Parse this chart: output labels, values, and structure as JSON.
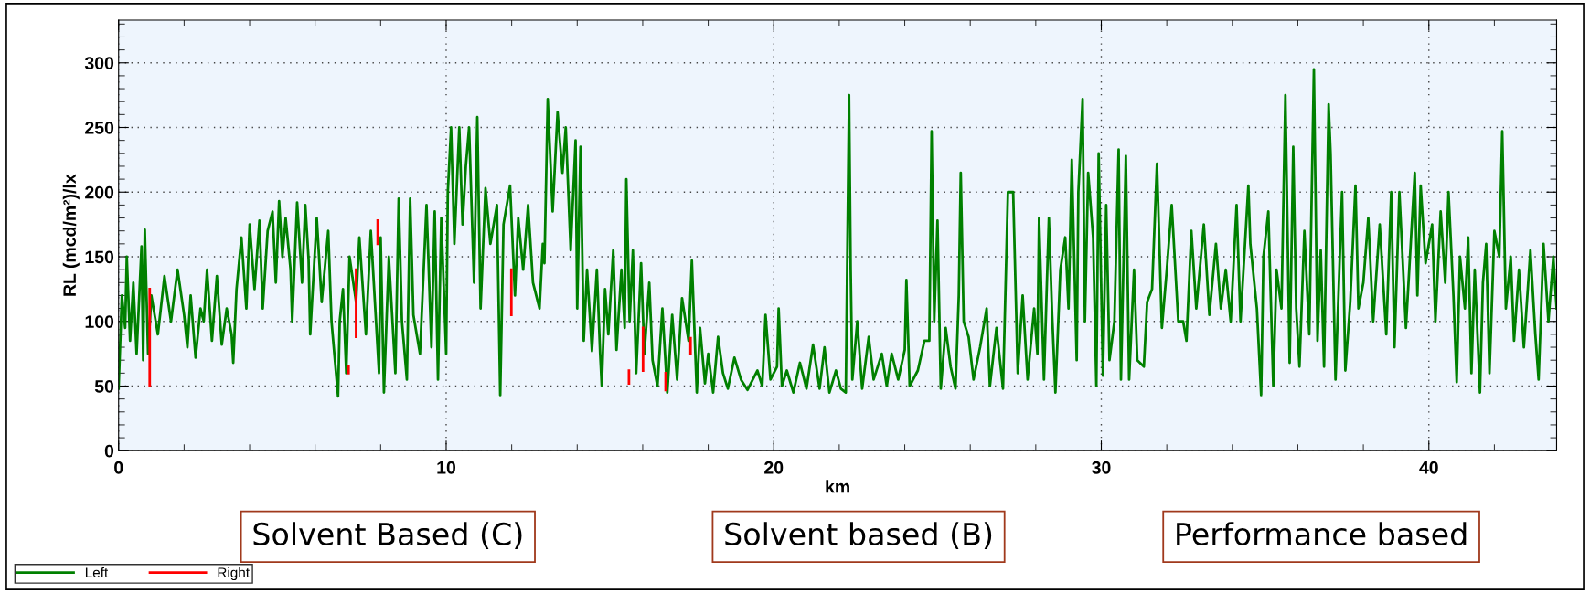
{
  "chart_data": {
    "type": "line",
    "xlabel": "km",
    "ylabel": "RL (mcd/m²)/lx",
    "xlim": [
      0,
      43.9
    ],
    "ylim": [
      0,
      333
    ],
    "xticks": [
      0,
      {
        "value": 2,
        "label": null
      },
      {
        "value": 4,
        "label": null
      },
      {
        "value": 6,
        "label": null
      },
      {
        "value": 8,
        "label": null
      },
      10,
      {
        "value": 12,
        "label": null
      },
      {
        "value": 14,
        "label": null
      },
      {
        "value": 16,
        "label": null
      },
      {
        "value": 18,
        "label": null
      },
      20,
      {
        "value": 22,
        "label": null
      },
      {
        "value": 24,
        "label": null
      },
      {
        "value": 26,
        "label": null
      },
      {
        "value": 28,
        "label": null
      },
      30,
      {
        "value": 32,
        "label": null
      },
      {
        "value": 34,
        "label": null
      },
      {
        "value": 36,
        "label": null
      },
      {
        "value": 38,
        "label": null
      },
      40,
      {
        "value": 42,
        "label": null
      }
    ],
    "yticks": [
      0,
      {
        "value": 10,
        "label": null
      },
      {
        "value": 20,
        "label": null
      },
      {
        "value": 30,
        "label": null
      },
      {
        "value": 40,
        "label": null
      },
      50,
      {
        "value": 60,
        "label": null
      },
      {
        "value": 70,
        "label": null
      },
      {
        "value": 80,
        "label": null
      },
      {
        "value": 90,
        "label": null
      },
      100,
      {
        "value": 110,
        "label": null
      },
      {
        "value": 120,
        "label": null
      },
      {
        "value": 130,
        "label": null
      },
      {
        "value": 140,
        "label": null
      },
      150,
      {
        "value": 160,
        "label": null
      },
      {
        "value": 170,
        "label": null
      },
      {
        "value": 180,
        "label": null
      },
      {
        "value": 190,
        "label": null
      },
      200,
      {
        "value": 210,
        "label": null
      },
      {
        "value": 220,
        "label": null
      },
      {
        "value": 230,
        "label": null
      },
      {
        "value": 240,
        "label": null
      },
      250,
      {
        "value": 260,
        "label": null
      },
      {
        "value": 270,
        "label": null
      },
      {
        "value": 280,
        "label": null
      },
      {
        "value": 290,
        "label": null
      },
      300,
      {
        "value": 310,
        "label": null
      },
      {
        "value": 320,
        "label": null
      },
      {
        "value": 330,
        "label": null
      }
    ],
    "grid": true,
    "legend": "bottom left",
    "line_style": "solid",
    "marker": "none",
    "annotations": [
      "Solvent Based (C)",
      "Solvent based (B)",
      "Performance based"
    ],
    "series": [
      {
        "name": "Left",
        "color": "#008000",
        "x": [
          0.0,
          0.1,
          0.2,
          0.25,
          0.35,
          0.45,
          0.55,
          0.7,
          0.75,
          0.8,
          0.9,
          1.0,
          1.2,
          1.4,
          1.6,
          1.8,
          2.0,
          2.1,
          2.2,
          2.35,
          2.5,
          2.6,
          2.7,
          2.85,
          3.0,
          3.15,
          3.3,
          3.45,
          3.5,
          3.6,
          3.75,
          3.9,
          4.0,
          4.15,
          4.3,
          4.4,
          4.55,
          4.7,
          4.8,
          4.9,
          5.0,
          5.1,
          5.25,
          5.3,
          5.45,
          5.6,
          5.7,
          5.8,
          5.85,
          6.05,
          6.2,
          6.4,
          6.5,
          6.7,
          6.75,
          6.85,
          6.95,
          7.05,
          7.25,
          7.35,
          7.55,
          7.7,
          7.95,
          8.0,
          8.1,
          8.25,
          8.45,
          8.55,
          8.65,
          8.8,
          8.9,
          9.0,
          9.2,
          9.4,
          9.55,
          9.65,
          9.75,
          9.85,
          10.0,
          10.05,
          10.15,
          10.25,
          10.4,
          10.5,
          10.6,
          10.7,
          10.85,
          10.95,
          11.05,
          11.2,
          11.35,
          11.55,
          11.65,
          11.75,
          11.95,
          12.1,
          12.2,
          12.35,
          12.5,
          12.65,
          12.85,
          12.95,
          13.0,
          13.1,
          13.25,
          13.4,
          13.55,
          13.65,
          13.8,
          13.95,
          14.0,
          14.1,
          14.2,
          14.3,
          14.45,
          14.6,
          14.7,
          14.75,
          14.85,
          14.95,
          15.1,
          15.2,
          15.35,
          15.45,
          15.5,
          15.6,
          15.7,
          15.8,
          15.95,
          16.05,
          16.2,
          16.3,
          16.45,
          16.6,
          16.75,
          16.9,
          17.05,
          17.2,
          17.4,
          17.5,
          17.65,
          17.75,
          17.9,
          18.0,
          18.15,
          18.3,
          18.45,
          18.6,
          18.8,
          19.0,
          19.2,
          19.5,
          19.65,
          19.75,
          19.9,
          20.1,
          20.15,
          20.25,
          20.4,
          20.6,
          20.8,
          21.0,
          21.2,
          21.4,
          21.55,
          21.7,
          21.9,
          22.05,
          22.2,
          22.3,
          22.35,
          22.4,
          22.55,
          22.7,
          22.9,
          23.05,
          23.3,
          23.45,
          23.6,
          23.8,
          24.0,
          24.05,
          24.15,
          24.4,
          24.6,
          24.75,
          24.82,
          24.9,
          25.0,
          25.1,
          25.25,
          25.4,
          25.55,
          25.65,
          25.71,
          25.8,
          25.95,
          26.1,
          26.3,
          26.5,
          26.6,
          26.8,
          27.0,
          27.15,
          27.31,
          27.45,
          27.6,
          27.75,
          27.95,
          28.05,
          28.1,
          28.25,
          28.4,
          28.5,
          28.6,
          28.75,
          28.9,
          29.0,
          29.1,
          29.25,
          29.3,
          29.43,
          29.5,
          29.6,
          29.75,
          29.85,
          29.92,
          30.05,
          30.15,
          30.25,
          30.4,
          30.53,
          30.6,
          30.75,
          30.85,
          31.0,
          31.1,
          31.3,
          31.4,
          31.55,
          31.7,
          31.85,
          32.0,
          32.15,
          32.35,
          32.5,
          32.6,
          32.75,
          32.9,
          33.13,
          33.3,
          33.5,
          33.65,
          33.8,
          33.95,
          34.13,
          34.25,
          34.49,
          34.55,
          34.75,
          34.88,
          34.95,
          35.1,
          35.25,
          35.35,
          35.5,
          35.62,
          35.75,
          35.86,
          35.95,
          36.05,
          36.2,
          36.35,
          36.49,
          36.6,
          36.7,
          36.8,
          36.94,
          37.0,
          37.15,
          37.35,
          37.45,
          37.6,
          37.76,
          37.85,
          38.0,
          38.15,
          38.3,
          38.5,
          38.7,
          38.85,
          38.95,
          39.1,
          39.3,
          39.57,
          39.65,
          39.75,
          39.9,
          40.1,
          40.2,
          40.36,
          40.5,
          40.6,
          40.75,
          40.85,
          40.95,
          41.1,
          41.2,
          41.3,
          41.4,
          41.56,
          41.65,
          41.75,
          41.85,
          42.0,
          42.15,
          42.24,
          42.35,
          42.5,
          42.6,
          42.75,
          42.9,
          43.1,
          43.25,
          43.35,
          43.5,
          43.65,
          43.8,
          43.9
        ],
        "values": [
          48,
          120,
          95,
          150,
          85,
          130,
          75,
          158,
          70,
          171,
          75,
          120,
          90,
          135,
          100,
          140,
          105,
          80,
          120,
          72,
          110,
          100,
          140,
          85,
          135,
          82,
          110,
          90,
          68,
          125,
          165,
          110,
          175,
          125,
          178,
          110,
          170,
          185,
          130,
          193,
          150,
          180,
          140,
          100,
          192,
          130,
          190,
          148,
          90,
          180,
          115,
          170,
          100,
          42,
          100,
          125,
          60,
          150,
          115,
          165,
          90,
          170,
          60,
          165,
          45,
          150,
          60,
          195,
          100,
          55,
          195,
          105,
          75,
          190,
          80,
          185,
          55,
          180,
          75,
          200,
          250,
          160,
          250,
          175,
          220,
          250,
          130,
          258,
          110,
          203,
          160,
          190,
          43,
          175,
          205,
          120,
          180,
          140,
          190,
          130,
          110,
          160,
          145,
          272,
          185,
          262,
          215,
          250,
          155,
          240,
          110,
          235,
          85,
          140,
          77,
          140,
          75,
          50,
          125,
          90,
          155,
          78,
          140,
          95,
          210,
          100,
          155,
          60,
          145,
          75,
          130,
          70,
          50,
          110,
          45,
          105,
          55,
          118,
          85,
          147,
          45,
          95,
          52,
          75,
          45,
          88,
          60,
          48,
          72,
          55,
          47,
          62,
          50,
          105,
          55,
          65,
          110,
          50,
          62,
          45,
          68,
          48,
          82,
          48,
          80,
          45,
          62,
          48,
          45,
          275,
          140,
          55,
          100,
          48,
          88,
          55,
          75,
          50,
          75,
          55,
          78,
          132,
          50,
          62,
          85,
          85,
          247,
          100,
          178,
          48,
          95,
          65,
          48,
          120,
          215,
          100,
          88,
          55,
          80,
          110,
          50,
          95,
          48,
          200,
          200,
          60,
          120,
          55,
          110,
          75,
          180,
          55,
          180,
          105,
          45,
          140,
          165,
          110,
          225,
          70,
          200,
          272,
          100,
          215,
          165,
          50,
          230,
          58,
          190,
          70,
          100,
          233,
          55,
          228,
          55,
          140,
          70,
          65,
          115,
          125,
          222,
          95,
          140,
          190,
          100,
          100,
          85,
          170,
          110,
          175,
          105,
          160,
          110,
          140,
          100,
          190,
          100,
          205,
          160,
          110,
          43,
          150,
          185,
          50,
          140,
          110,
          275,
          68,
          235,
          110,
          65,
          170,
          90,
          295,
          85,
          155,
          65,
          268,
          230,
          55,
          200,
          62,
          115,
          205,
          110,
          130,
          180,
          100,
          175,
          90,
          200,
          80,
          200,
          95,
          215,
          120,
          205,
          145,
          175,
          100,
          185,
          130,
          200,
          120,
          53,
          150,
          110,
          165,
          60,
          140,
          45,
          130,
          160,
          60,
          170,
          150,
          247,
          110,
          150,
          85,
          140,
          80,
          155,
          90,
          55,
          160,
          100,
          150,
          110
        ]
      },
      {
        "name": "Right",
        "color": "#ff0000",
        "x": [
          0.95,
          0.95,
          null,
          7.02,
          7.02,
          null,
          7.25,
          7.25,
          null,
          7.91,
          7.91,
          null,
          11.99,
          11.99,
          null,
          15.58,
          15.58,
          null,
          16.01,
          16.01,
          null,
          16.7,
          16.7,
          null,
          17.46,
          17.46
        ],
        "values": [
          50,
          125,
          null,
          60,
          65,
          null,
          140,
          88,
          null,
          178,
          160,
          null,
          105,
          140,
          null,
          52,
          62,
          null,
          62,
          95,
          null,
          47,
          60,
          null,
          75,
          87
        ]
      }
    ]
  }
}
